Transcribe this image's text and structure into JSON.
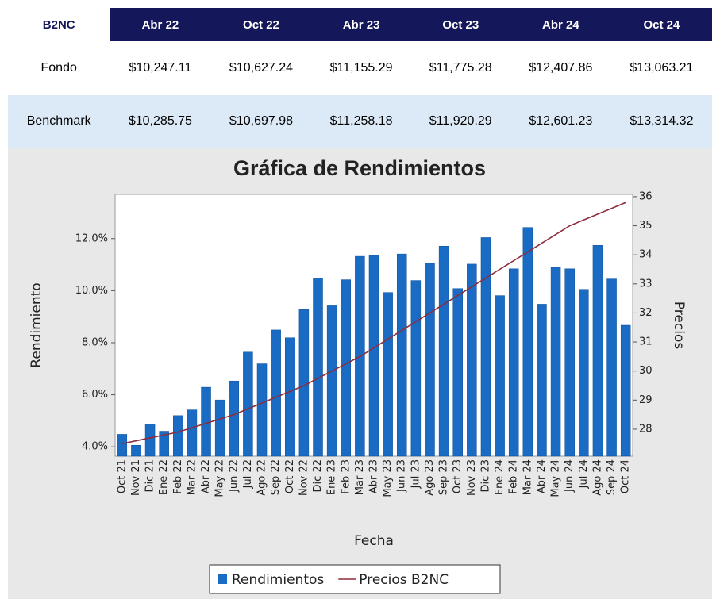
{
  "table": {
    "header": [
      "B2NC",
      "Abr 22",
      "Oct 22",
      "Abr 23",
      "Oct 23",
      "Abr 24",
      "Oct 24"
    ],
    "rows": [
      [
        "Fondo",
        "$10,247.11",
        "$10,627.24",
        "$11,155.29",
        "$11,775.28",
        "$12,407.86",
        "$13,063.21"
      ],
      [
        "Benchmark",
        "$10,285.75",
        "$10,697.98",
        "$11,258.18",
        "$11,920.29",
        "$12,601.23",
        "$13,314.32"
      ]
    ]
  },
  "chart_data": {
    "type": "bar-line",
    "title": "Gráfica de Rendimientos",
    "x_label": "Fecha",
    "y_label": "Rendimiento",
    "y2_label": "Precios",
    "categories": [
      "Oct 21",
      "Nov 21",
      "Dic 21",
      "Ene 22",
      "Feb 22",
      "Mar 22",
      "Abr 22",
      "May 22",
      "Jun 22",
      "Jul 22",
      "Ago 22",
      "Sep 22",
      "Oct 22",
      "Nov 22",
      "Dic 22",
      "Ene 23",
      "Feb 23",
      "Mar 23",
      "Abr 23",
      "May 23",
      "Jun 23",
      "Jul 23",
      "Ago 23",
      "Sep 23",
      "Oct 23",
      "Nov 23",
      "Dic 23",
      "Ene 24",
      "Feb 24",
      "Mar 24",
      "Abr 24",
      "May 24",
      "Jun 24",
      "Jul 24",
      "Ago 24",
      "Sep 24",
      "Oct 24"
    ],
    "series": [
      {
        "name": "Rendimientos",
        "type": "bar",
        "color": "#1a6bc4",
        "values": [
          4.48,
          4.06,
          4.87,
          4.6,
          5.2,
          5.42,
          6.29,
          5.8,
          6.53,
          7.64,
          7.19,
          8.49,
          8.19,
          9.27,
          10.48,
          9.42,
          10.42,
          11.32,
          11.35,
          9.93,
          11.41,
          10.39,
          11.05,
          11.71,
          10.08,
          11.02,
          12.04,
          9.81,
          10.84,
          12.43,
          9.48,
          10.9,
          10.84,
          10.05,
          11.74,
          10.45,
          8.67
        ]
      },
      {
        "name": "Precios B2NC",
        "type": "line",
        "axis": "y2",
        "color": "#8b2d3a",
        "values": [
          27.5,
          27.6,
          27.7,
          27.8,
          27.9,
          28.05,
          28.2,
          28.35,
          28.5,
          28.7,
          28.9,
          29.1,
          29.3,
          29.5,
          29.75,
          30.0,
          30.25,
          30.5,
          30.8,
          31.1,
          31.4,
          31.7,
          32.0,
          32.3,
          32.6,
          32.9,
          33.2,
          33.5,
          33.8,
          34.1,
          34.4,
          34.7,
          35.0,
          35.2,
          35.4,
          35.6,
          35.8
        ]
      }
    ],
    "ylim": [
      3.64,
      13.7
    ],
    "yticks": [
      {
        "value": 4,
        "label": "4.0%"
      },
      {
        "value": 6,
        "label": "6.0%"
      },
      {
        "value": 8,
        "label": "8.0%"
      },
      {
        "value": 10,
        "label": "10.0%"
      },
      {
        "value": 12,
        "label": "12.0%"
      }
    ],
    "y2lim": [
      27.07,
      36.08
    ],
    "y2ticks": [
      28,
      29,
      30,
      31,
      32,
      33,
      34,
      35,
      36
    ],
    "grid": false
  }
}
